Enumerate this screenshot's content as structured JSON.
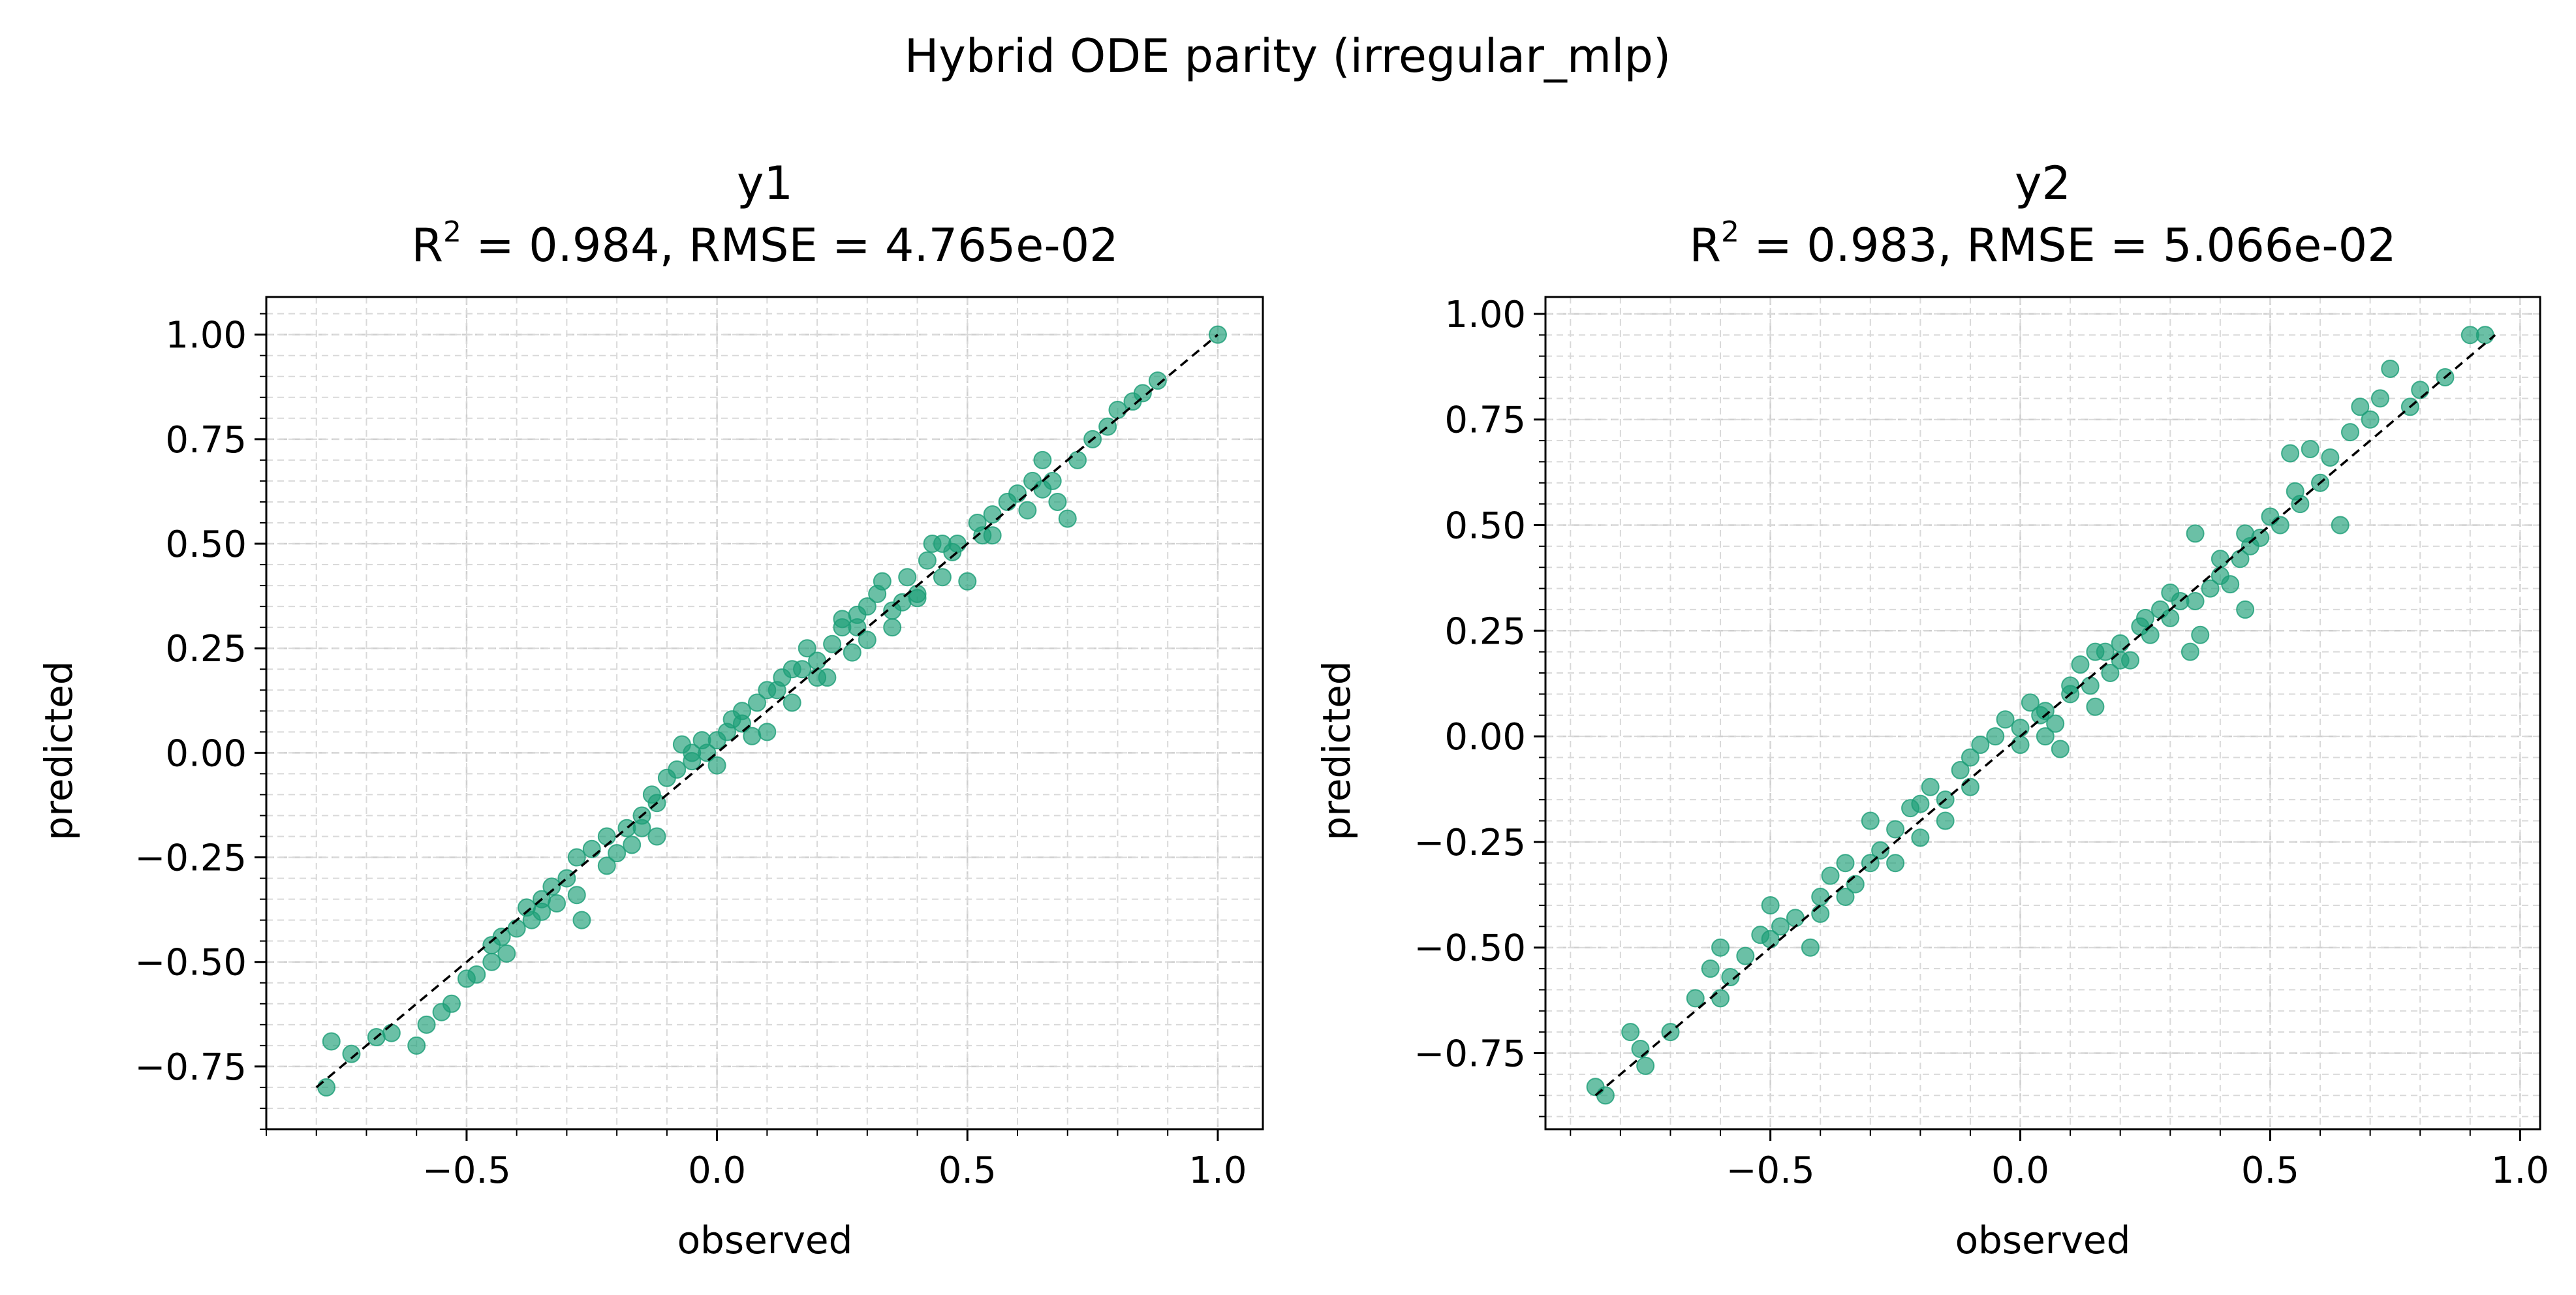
{
  "figure": {
    "suptitle": "Hybrid ODE parity (irregular_mlp)"
  },
  "colors": {
    "points": "#1b9e77",
    "diagonal": "#000000",
    "grid": "#d9d9d9"
  },
  "chart_data": [
    {
      "type": "scatter",
      "title_var": "y1",
      "title_metrics_prefix": "R",
      "title_metrics_sup": "2",
      "title_metrics_suffix": " = 0.984, RMSE = 4.765e-02",
      "xlabel": "observed",
      "ylabel": "predicted",
      "xlim": [
        -0.9,
        1.09
      ],
      "ylim": [
        -0.9,
        1.09
      ],
      "xticks": [
        -0.5,
        0.0,
        0.5,
        1.0
      ],
      "xtick_labels": [
        "−0.5",
        "0.0",
        "0.5",
        "1.0"
      ],
      "yticks": [
        -0.75,
        -0.5,
        -0.25,
        0.0,
        0.25,
        0.5,
        0.75,
        1.0
      ],
      "ytick_labels": [
        "−0.75",
        "−0.50",
        "−0.25",
        "0.00",
        "0.25",
        "0.50",
        "0.75",
        "1.00"
      ],
      "grid": true,
      "diagonal": [
        -0.8,
        1.0
      ],
      "points": [
        [
          -0.78,
          -0.8
        ],
        [
          -0.77,
          -0.69
        ],
        [
          -0.73,
          -0.72
        ],
        [
          -0.68,
          -0.68
        ],
        [
          -0.65,
          -0.67
        ],
        [
          -0.6,
          -0.7
        ],
        [
          -0.58,
          -0.65
        ],
        [
          -0.55,
          -0.62
        ],
        [
          -0.53,
          -0.6
        ],
        [
          -0.5,
          -0.54
        ],
        [
          -0.48,
          -0.53
        ],
        [
          -0.45,
          -0.5
        ],
        [
          -0.43,
          -0.44
        ],
        [
          -0.42,
          -0.48
        ],
        [
          -0.4,
          -0.42
        ],
        [
          -0.38,
          -0.37
        ],
        [
          -0.37,
          -0.4
        ],
        [
          -0.35,
          -0.35
        ],
        [
          -0.33,
          -0.32
        ],
        [
          -0.32,
          -0.36
        ],
        [
          -0.3,
          -0.3
        ],
        [
          -0.28,
          -0.25
        ],
        [
          -0.27,
          -0.4
        ],
        [
          -0.25,
          -0.23
        ],
        [
          -0.22,
          -0.27
        ],
        [
          -0.2,
          -0.24
        ],
        [
          -0.18,
          -0.18
        ],
        [
          -0.17,
          -0.22
        ],
        [
          -0.15,
          -0.15
        ],
        [
          -0.13,
          -0.1
        ],
        [
          -0.12,
          -0.2
        ],
        [
          -0.1,
          -0.06
        ],
        [
          -0.08,
          -0.04
        ],
        [
          -0.07,
          0.02
        ],
        [
          -0.05,
          -0.02
        ],
        [
          -0.03,
          0.03
        ],
        [
          -0.02,
          0.0
        ],
        [
          0.0,
          0.03
        ],
        [
          0.02,
          0.05
        ],
        [
          0.03,
          0.08
        ],
        [
          0.05,
          0.1
        ],
        [
          0.07,
          0.04
        ],
        [
          0.08,
          0.12
        ],
        [
          0.1,
          0.05
        ],
        [
          0.12,
          0.15
        ],
        [
          0.13,
          0.18
        ],
        [
          0.15,
          0.12
        ],
        [
          0.17,
          0.2
        ],
        [
          0.18,
          0.25
        ],
        [
          0.2,
          0.22
        ],
        [
          0.22,
          0.18
        ],
        [
          0.23,
          0.26
        ],
        [
          0.25,
          0.3
        ],
        [
          0.27,
          0.24
        ],
        [
          0.28,
          0.33
        ],
        [
          0.3,
          0.35
        ],
        [
          0.32,
          0.38
        ],
        [
          0.33,
          0.41
        ],
        [
          0.35,
          0.3
        ],
        [
          0.37,
          0.36
        ],
        [
          0.38,
          0.42
        ],
        [
          0.4,
          0.37
        ],
        [
          0.42,
          0.46
        ],
        [
          0.43,
          0.5
        ],
        [
          0.45,
          0.42
        ],
        [
          0.47,
          0.48
        ],
        [
          0.48,
          0.5
        ],
        [
          0.5,
          0.41
        ],
        [
          0.52,
          0.55
        ],
        [
          0.53,
          0.52
        ],
        [
          0.55,
          0.57
        ],
        [
          0.58,
          0.6
        ],
        [
          0.6,
          0.62
        ],
        [
          0.62,
          0.58
        ],
        [
          0.63,
          0.65
        ],
        [
          0.65,
          0.7
        ],
        [
          0.67,
          0.65
        ],
        [
          0.68,
          0.6
        ],
        [
          0.7,
          0.56
        ],
        [
          0.72,
          0.7
        ],
        [
          0.75,
          0.75
        ],
        [
          0.78,
          0.78
        ],
        [
          0.8,
          0.82
        ],
        [
          0.83,
          0.84
        ],
        [
          0.85,
          0.86
        ],
        [
          0.88,
          0.89
        ],
        [
          1.0,
          1.0
        ],
        [
          -0.45,
          -0.46
        ],
        [
          -0.35,
          -0.38
        ],
        [
          -0.28,
          -0.34
        ],
        [
          -0.22,
          -0.2
        ],
        [
          -0.12,
          -0.12
        ],
        [
          0.05,
          0.07
        ],
        [
          0.15,
          0.2
        ],
        [
          0.25,
          0.32
        ],
        [
          0.3,
          0.27
        ],
        [
          0.35,
          0.34
        ],
        [
          0.4,
          0.38
        ],
        [
          0.45,
          0.5
        ],
        [
          0.55,
          0.52
        ],
        [
          0.65,
          0.63
        ],
        [
          -0.15,
          -0.18
        ],
        [
          -0.05,
          0.0
        ],
        [
          0.0,
          -0.03
        ],
        [
          0.1,
          0.15
        ],
        [
          0.2,
          0.18
        ],
        [
          0.28,
          0.3
        ]
      ]
    },
    {
      "type": "scatter",
      "title_var": "y2",
      "title_metrics_prefix": "R",
      "title_metrics_sup": "2",
      "title_metrics_suffix": " = 0.983, RMSE = 5.066e-02",
      "xlabel": "observed",
      "ylabel": "predicted",
      "xlim": [
        -0.95,
        1.04
      ],
      "ylim": [
        -0.93,
        1.04
      ],
      "xticks": [
        -0.5,
        0.0,
        0.5,
        1.0
      ],
      "xtick_labels": [
        "−0.5",
        "0.0",
        "0.5",
        "1.0"
      ],
      "yticks": [
        -0.75,
        -0.5,
        -0.25,
        0.0,
        0.25,
        0.5,
        0.75,
        1.0
      ],
      "ytick_labels": [
        "−0.75",
        "−0.50",
        "−0.25",
        "0.00",
        "0.25",
        "0.50",
        "0.75",
        "1.00"
      ],
      "grid": true,
      "diagonal": [
        -0.85,
        0.95
      ],
      "points": [
        [
          -0.85,
          -0.83
        ],
        [
          -0.83,
          -0.85
        ],
        [
          -0.78,
          -0.7
        ],
        [
          -0.76,
          -0.74
        ],
        [
          -0.75,
          -0.78
        ],
        [
          -0.7,
          -0.7
        ],
        [
          -0.65,
          -0.62
        ],
        [
          -0.62,
          -0.55
        ],
        [
          -0.6,
          -0.5
        ],
        [
          -0.58,
          -0.57
        ],
        [
          -0.55,
          -0.52
        ],
        [
          -0.52,
          -0.47
        ],
        [
          -0.5,
          -0.4
        ],
        [
          -0.48,
          -0.45
        ],
        [
          -0.45,
          -0.43
        ],
        [
          -0.42,
          -0.5
        ],
        [
          -0.4,
          -0.38
        ],
        [
          -0.38,
          -0.33
        ],
        [
          -0.35,
          -0.3
        ],
        [
          -0.33,
          -0.35
        ],
        [
          -0.3,
          -0.2
        ],
        [
          -0.28,
          -0.27
        ],
        [
          -0.25,
          -0.22
        ],
        [
          -0.22,
          -0.17
        ],
        [
          -0.2,
          -0.24
        ],
        [
          -0.18,
          -0.12
        ],
        [
          -0.15,
          -0.15
        ],
        [
          -0.12,
          -0.08
        ],
        [
          -0.1,
          -0.05
        ],
        [
          -0.08,
          -0.02
        ],
        [
          -0.05,
          0.0
        ],
        [
          -0.03,
          0.04
        ],
        [
          0.0,
          0.02
        ],
        [
          0.02,
          0.08
        ],
        [
          0.04,
          0.05
        ],
        [
          0.05,
          0.0
        ],
        [
          0.07,
          0.03
        ],
        [
          0.08,
          -0.03
        ],
        [
          0.1,
          0.1
        ],
        [
          0.12,
          0.17
        ],
        [
          0.14,
          0.12
        ],
        [
          0.15,
          0.07
        ],
        [
          0.17,
          0.2
        ],
        [
          0.18,
          0.15
        ],
        [
          0.2,
          0.22
        ],
        [
          0.22,
          0.18
        ],
        [
          0.24,
          0.26
        ],
        [
          0.26,
          0.24
        ],
        [
          0.28,
          0.3
        ],
        [
          0.3,
          0.28
        ],
        [
          0.32,
          0.32
        ],
        [
          0.34,
          0.2
        ],
        [
          0.35,
          0.48
        ],
        [
          0.36,
          0.24
        ],
        [
          0.38,
          0.35
        ],
        [
          0.4,
          0.38
        ],
        [
          0.42,
          0.36
        ],
        [
          0.44,
          0.42
        ],
        [
          0.45,
          0.3
        ],
        [
          0.46,
          0.45
        ],
        [
          0.48,
          0.47
        ],
        [
          0.5,
          0.52
        ],
        [
          0.52,
          0.5
        ],
        [
          0.54,
          0.67
        ],
        [
          0.56,
          0.55
        ],
        [
          0.58,
          0.68
        ],
        [
          0.6,
          0.6
        ],
        [
          0.62,
          0.66
        ],
        [
          0.64,
          0.5
        ],
        [
          0.66,
          0.72
        ],
        [
          0.68,
          0.78
        ],
        [
          0.7,
          0.75
        ],
        [
          0.72,
          0.8
        ],
        [
          0.74,
          0.87
        ],
        [
          0.78,
          0.78
        ],
        [
          0.8,
          0.82
        ],
        [
          0.85,
          0.85
        ],
        [
          0.9,
          0.95
        ],
        [
          0.93,
          0.95
        ],
        [
          -0.5,
          -0.48
        ],
        [
          -0.4,
          -0.42
        ],
        [
          -0.3,
          -0.3
        ],
        [
          -0.2,
          -0.16
        ],
        [
          -0.1,
          -0.12
        ],
        [
          0.0,
          -0.02
        ],
        [
          0.1,
          0.12
        ],
        [
          0.2,
          0.18
        ],
        [
          0.25,
          0.28
        ],
        [
          0.3,
          0.34
        ],
        [
          0.35,
          0.32
        ],
        [
          0.4,
          0.42
        ],
        [
          -0.35,
          -0.38
        ],
        [
          -0.15,
          -0.2
        ],
        [
          0.05,
          0.06
        ],
        [
          0.15,
          0.2
        ],
        [
          0.45,
          0.48
        ],
        [
          0.55,
          0.58
        ],
        [
          -0.6,
          -0.62
        ],
        [
          -0.25,
          -0.3
        ]
      ]
    }
  ]
}
